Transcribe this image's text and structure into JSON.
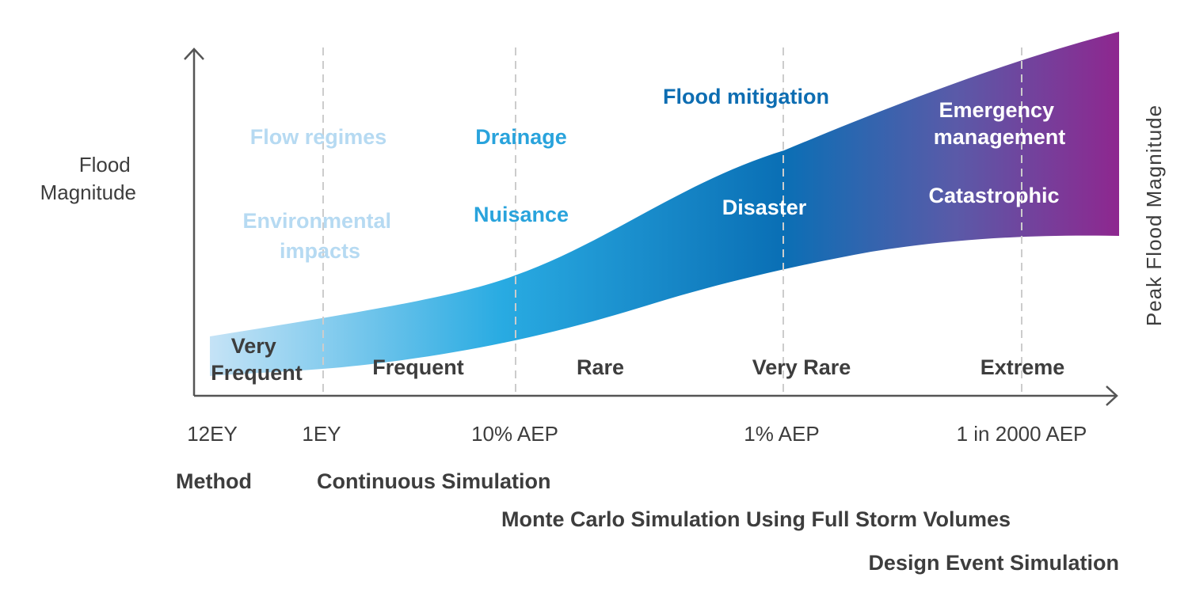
{
  "y_axis_label": [
    "Flood",
    "Magnitude"
  ],
  "right_axis_label": "Peak Flood Magnitude",
  "dividers": [
    {
      "label": "12EY"
    },
    {
      "label": "1EY"
    },
    {
      "label": "10% AEP"
    },
    {
      "label": "1% AEP"
    },
    {
      "label": "1 in 2000 AEP"
    }
  ],
  "event_classes": [
    {
      "label_lines": [
        "Very",
        "Frequent"
      ]
    },
    {
      "label_lines": [
        "Frequent"
      ]
    },
    {
      "label_lines": [
        "Rare"
      ]
    },
    {
      "label_lines": [
        "Very Rare"
      ]
    },
    {
      "label_lines": [
        "Extreme"
      ]
    }
  ],
  "impacts": {
    "flow_regimes": "Flow regimes",
    "environmental_impacts": [
      "Environmental",
      "impacts"
    ],
    "drainage": "Drainage",
    "nuisance": "Nuisance",
    "flood_mitigation": "Flood mitigation",
    "disaster": "Disaster",
    "emergency_management": [
      "Emergency",
      "management"
    ],
    "catastrophic": "Catastrophic"
  },
  "methods": {
    "label": "Method",
    "items": [
      "Continuous Simulation",
      "Monte Carlo Simulation Using Full Storm Volumes",
      "Design Event Simulation"
    ]
  },
  "colors": {
    "band_start": "#c5e3f6",
    "band_mid1": "#29abe2",
    "band_mid2": "#0a6fb5",
    "band_mid3": "#5a5aa8",
    "band_end": "#8e278f",
    "axis": "#555555",
    "divider": "#cccccc",
    "dark_text": "#3d3d3d",
    "pale_blue_text": "#b6daf2",
    "mid_blue_text": "#29a3dc",
    "dark_blue_text": "#0d6db2",
    "white_text": "#ffffff"
  }
}
